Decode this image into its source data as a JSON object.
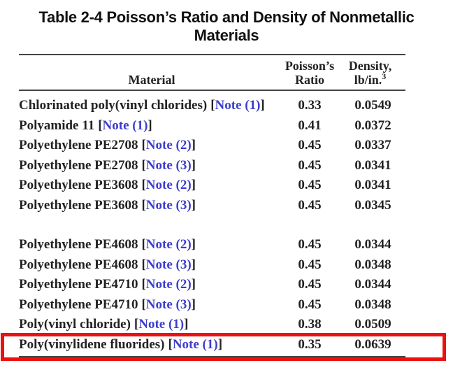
{
  "title": "Table 2-4 Poisson’s Ratio and Density of Nonmetallic Materials",
  "table": {
    "bracket_open": "[",
    "bracket_close": "]",
    "headers": {
      "material": "Material",
      "ratio_line1": "Poisson’s",
      "ratio_line2": "Ratio",
      "density_line1": "Density,",
      "density_line2": "lb/in.",
      "density_sup": "3"
    },
    "rows": [
      {
        "material": "Chlorinated poly(vinyl chlorides)",
        "note": "Note (1)",
        "ratio": "0.33",
        "density": "0.0549"
      },
      {
        "material": "Polyamide 11",
        "note": "Note (1)",
        "ratio": "0.41",
        "density": "0.0372"
      },
      {
        "material": "Polyethylene PE2708",
        "note": "Note (2)",
        "ratio": "0.45",
        "density": "0.0337"
      },
      {
        "material": "Polyethylene PE2708",
        "note": "Note (3)",
        "ratio": "0.45",
        "density": "0.0341"
      },
      {
        "material": "Polyethylene PE3608",
        "note": "Note (2)",
        "ratio": "0.45",
        "density": "0.0341"
      },
      {
        "material": "Polyethylene PE3608",
        "note": "Note (3)",
        "ratio": "0.45",
        "density": "0.0345"
      },
      {
        "material": "Polyethylene PE4608",
        "note": "Note (2)",
        "ratio": "0.45",
        "density": "0.0344"
      },
      {
        "material": "Polyethylene PE4608",
        "note": "Note (3)",
        "ratio": "0.45",
        "density": "0.0348"
      },
      {
        "material": "Polyethylene PE4710",
        "note": "Note (2)",
        "ratio": "0.45",
        "density": "0.0344"
      },
      {
        "material": "Polyethylene PE4710",
        "note": "Note (3)",
        "ratio": "0.45",
        "density": "0.0348"
      },
      {
        "material": "Poly(vinyl chloride)",
        "note": "Note (1)",
        "ratio": "0.38",
        "density": "0.0509"
      },
      {
        "material": "Poly(vinylidene fluorides)",
        "note": "Note (1)",
        "ratio": "0.35",
        "density": "0.0639"
      }
    ],
    "highlighted_row_index": 11
  },
  "colors": {
    "text": "#222222",
    "link": "#3c3ccd",
    "rule": "#444444",
    "highlight_red": "#ec1111",
    "background": "#ffffff"
  }
}
